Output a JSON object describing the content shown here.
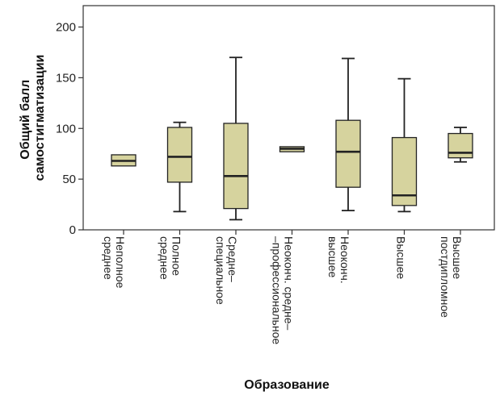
{
  "chart_data": {
    "type": "boxplot",
    "xlabel": "Образование",
    "ylabel_lines": [
      "Общий балл",
      "самостигматизации"
    ],
    "ylim": [
      0,
      220
    ],
    "yticks": [
      0,
      50,
      100,
      150,
      200
    ],
    "grid": false,
    "box_color": "#d6d39e",
    "line_color": "#222222",
    "categories": [
      {
        "label_lines": [
          "Неполное",
          "среднее"
        ],
        "whisker_low": null,
        "q1": 63,
        "median": 68,
        "q3": 74,
        "whisker_high": null
      },
      {
        "label_lines": [
          "Полное",
          "среднее"
        ],
        "whisker_low": 18,
        "q1": 47,
        "median": 72,
        "q3": 101,
        "whisker_high": 106
      },
      {
        "label_lines": [
          "Средне–",
          "специальное"
        ],
        "whisker_low": 10,
        "q1": 21,
        "median": 53,
        "q3": 105,
        "whisker_high": 170
      },
      {
        "label_lines": [
          "Неоконч. средне–",
          "–профессиональное"
        ],
        "whisker_low": null,
        "q1": 77,
        "median": 80,
        "q3": 82,
        "whisker_high": null
      },
      {
        "label_lines": [
          "Неоконч.",
          "высшее"
        ],
        "whisker_low": 19,
        "q1": 42,
        "median": 77,
        "q3": 108,
        "whisker_high": 169
      },
      {
        "label_lines": [
          "Высшее"
        ],
        "whisker_low": 18,
        "q1": 24,
        "median": 34,
        "q3": 91,
        "whisker_high": 149
      },
      {
        "label_lines": [
          "Высшее",
          "постдипломное"
        ],
        "whisker_low": 67,
        "q1": 71,
        "median": 76,
        "q3": 95,
        "whisker_high": 101
      }
    ]
  }
}
